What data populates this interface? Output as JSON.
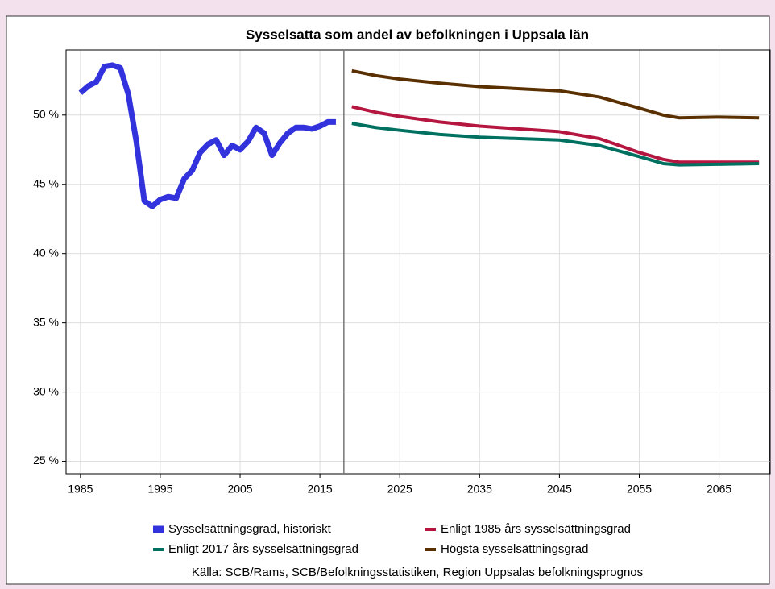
{
  "chart_data": {
    "type": "line",
    "title": "Sysselsatta som andel av befolkningen i Uppsala län",
    "source": "Källa: SCB/Rams, SCB/Befolkningsstatistiken, Region Uppsalas befolkningsprognos",
    "series": [
      {
        "name": "Sysselsättningsgrad, historiskt",
        "color": "#3333dd",
        "width": 7,
        "x": [
          1985,
          1986,
          1987,
          1988,
          1989,
          1990,
          1991,
          1992,
          1993,
          1994,
          1995,
          1996,
          1997,
          1998,
          1999,
          2000,
          2001,
          2002,
          2003,
          2004,
          2005,
          2006,
          2007,
          2008,
          2009,
          2010,
          2011,
          2012,
          2013,
          2014,
          2015,
          2016,
          2017
        ],
        "values": [
          51.6,
          52.1,
          52.4,
          53.5,
          53.6,
          53.4,
          51.5,
          48.1,
          43.8,
          43.4,
          43.9,
          44.1,
          44.0,
          45.4,
          46.0,
          47.3,
          47.9,
          48.2,
          47.1,
          47.8,
          47.5,
          48.1,
          49.1,
          48.7,
          47.1,
          48.0,
          48.7,
          49.1,
          49.1,
          49.0,
          49.2,
          49.5,
          49.5
        ]
      },
      {
        "name": "Enligt 1985 års sysselsättningsgrad",
        "color": "#b5163f",
        "width": 4,
        "x": [
          2019,
          2022,
          2025,
          2030,
          2035,
          2040,
          2045,
          2050,
          2055,
          2058,
          2060,
          2065,
          2070
        ],
        "values": [
          50.6,
          50.2,
          49.9,
          49.5,
          49.2,
          49.0,
          48.8,
          48.3,
          47.3,
          46.8,
          46.6,
          46.6,
          46.6
        ]
      },
      {
        "name": "Enligt 2017 års sysselsättningsgrad",
        "color": "#007060",
        "width": 4,
        "x": [
          2019,
          2022,
          2025,
          2030,
          2035,
          2040,
          2045,
          2050,
          2055,
          2058,
          2060,
          2065,
          2070
        ],
        "values": [
          49.4,
          49.1,
          48.9,
          48.6,
          48.4,
          48.3,
          48.2,
          47.8,
          47.0,
          46.5,
          46.4,
          46.45,
          46.5
        ]
      },
      {
        "name": "Högsta sysselsättningsgrad",
        "color": "#5a3000",
        "width": 4,
        "x": [
          2019,
          2022,
          2025,
          2030,
          2035,
          2040,
          2045,
          2050,
          2055,
          2058,
          2060,
          2065,
          2070
        ],
        "values": [
          53.2,
          52.85,
          52.6,
          52.3,
          52.05,
          51.9,
          51.75,
          51.3,
          50.5,
          50.0,
          49.8,
          49.85,
          49.8
        ]
      }
    ],
    "reference_line_x": 2018,
    "xlim": [
      1983.2,
      2071.4
    ],
    "ylim": [
      24.1,
      54.7
    ],
    "xticks": [
      1985,
      1995,
      2005,
      2015,
      2025,
      2035,
      2045,
      2055,
      2065
    ],
    "yticks": [
      {
        "value": 25,
        "label": "25 %"
      },
      {
        "value": 30,
        "label": "30 %"
      },
      {
        "value": 35,
        "label": "35 %"
      },
      {
        "value": 40,
        "label": "40 %"
      },
      {
        "value": 45,
        "label": "45 %"
      },
      {
        "value": 50,
        "label": "50 %"
      }
    ],
    "grid": true
  }
}
